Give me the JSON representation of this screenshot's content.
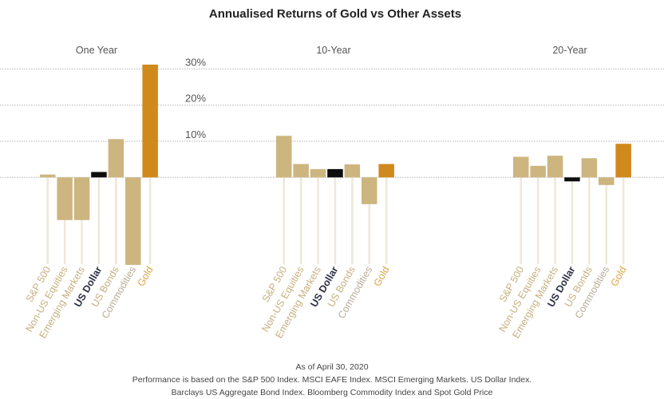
{
  "chart_data": {
    "type": "bar",
    "title": "Annualised Returns of Gold vs Other Assets",
    "xlabel": "",
    "ylabel": "",
    "ylim": [
      -25,
      32
    ],
    "yticks": [
      10,
      20,
      30
    ],
    "ytick_labels": [
      "10%",
      "20%",
      "30%"
    ],
    "grid": true,
    "categories": [
      "S&P 500",
      "Non-US Equities",
      "Emerging Markets",
      "US Dollar",
      "US Bonds",
      "Commodities",
      "Gold"
    ],
    "category_colors": {
      "bar_default": "#cdb57f",
      "bar_us_dollar": "#0d0d0d",
      "bar_gold": "#d0891c",
      "label_default": "#c6b07f",
      "label_commodities": "#b8ad96",
      "label_us_dollar": "#2b2e45",
      "label_gold": "#e0a446",
      "stem": "#efe7d8",
      "grid": "#b5b5b5"
    },
    "panels": [
      {
        "name": "One Year",
        "values": [
          0.8,
          -11.8,
          -11.8,
          1.5,
          10.6,
          -24.2,
          31.2
        ]
      },
      {
        "name": "10-Year",
        "values": [
          11.5,
          3.7,
          2.3,
          2.3,
          3.6,
          -7.4,
          3.7
        ]
      },
      {
        "name": "20-Year",
        "values": [
          5.7,
          3.2,
          6.0,
          -1.1,
          5.3,
          -2.1,
          9.3
        ]
      }
    ]
  },
  "footer": {
    "line1": "As of April 30, 2020",
    "line2": "Performance is based on the S&P 500 Index. MSCI EAFE Index. MSCI Emerging Markets. US Dollar Index.",
    "line3": "Barclays US Aggregate Bond Index. Bloomberg Commodity Index and Spot Gold Price"
  }
}
